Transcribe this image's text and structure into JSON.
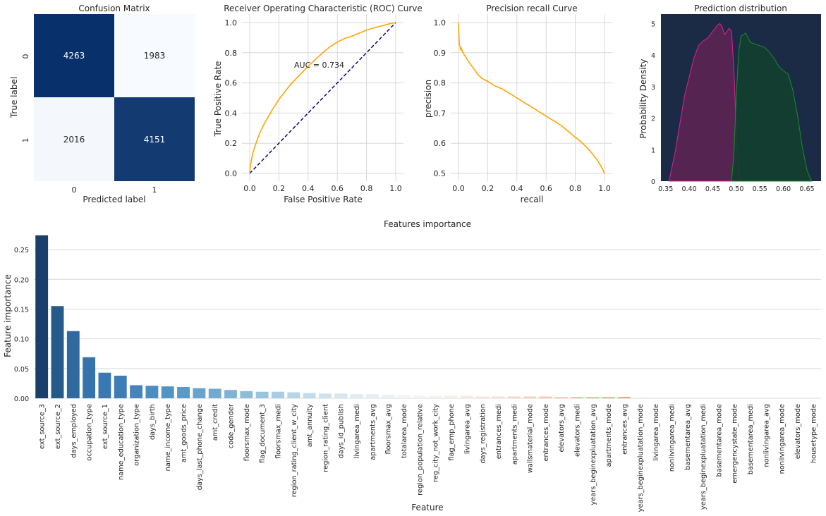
{
  "chart_data": [
    {
      "type": "heatmap",
      "title": "Confusion Matrix",
      "xlabel": "Predicted label",
      "ylabel": "True label",
      "x_categories": [
        "0",
        "1"
      ],
      "y_categories": [
        "0",
        "1"
      ],
      "values": [
        [
          4263,
          1983
        ],
        [
          2016,
          4151
        ]
      ],
      "colormap": "Blues",
      "colors": {
        "high": "#08306b",
        "high2": "#083d7f",
        "low": "#f7fbff"
      }
    },
    {
      "type": "line",
      "title": "Receiver Operating Characteristic (ROC) Curve",
      "xlabel": "False Positive Rate",
      "ylabel": "True Positive Rate",
      "xlim": [
        0,
        1
      ],
      "ylim": [
        0,
        1
      ],
      "xticks": [
        "0.0",
        "0.2",
        "0.4",
        "0.6",
        "0.8",
        "1.0"
      ],
      "yticks": [
        "0.0",
        "0.2",
        "0.4",
        "0.6",
        "0.8",
        "1.0"
      ],
      "annotation": "AUC = 0.734",
      "grid": true,
      "series": [
        {
          "color": "#ffa500",
          "x": [
            0,
            0.005,
            0.01,
            0.02,
            0.03,
            0.05,
            0.07,
            0.1,
            0.13,
            0.16,
            0.2,
            0.24,
            0.28,
            0.32,
            0.36,
            0.4,
            0.45,
            0.5,
            0.55,
            0.6,
            0.65,
            0.7,
            0.75,
            0.8,
            0.85,
            0.9,
            0.95,
            1.0
          ],
          "y": [
            0,
            0.05,
            0.08,
            0.13,
            0.16,
            0.22,
            0.27,
            0.33,
            0.38,
            0.43,
            0.49,
            0.54,
            0.59,
            0.63,
            0.67,
            0.71,
            0.755,
            0.8,
            0.84,
            0.87,
            0.895,
            0.91,
            0.93,
            0.95,
            0.965,
            0.977,
            0.99,
            1.0
          ]
        },
        {
          "color": "#000080",
          "dash": true,
          "x": [
            0,
            1
          ],
          "y": [
            0,
            1
          ]
        }
      ]
    },
    {
      "type": "line",
      "title": "Precision recall Curve",
      "xlabel": "recall",
      "ylabel": "precision",
      "xlim": [
        0,
        1
      ],
      "ylim": [
        0.5,
        1.0
      ],
      "xticks": [
        "0.0",
        "0.2",
        "0.4",
        "0.6",
        "0.8",
        "1.0"
      ],
      "yticks": [
        "0.5",
        "0.6",
        "0.7",
        "0.8",
        "0.9",
        "1.0"
      ],
      "grid": true,
      "series": [
        {
          "color": "#ffa500",
          "x": [
            0,
            0.003,
            0.006,
            0.01,
            0.015,
            0.02,
            0.03,
            0.05,
            0.07,
            0.1,
            0.13,
            0.16,
            0.2,
            0.25,
            0.3,
            0.35,
            0.4,
            0.45,
            0.5,
            0.55,
            0.6,
            0.65,
            0.7,
            0.75,
            0.8,
            0.85,
            0.9,
            0.95,
            0.98,
            1.0
          ],
          "y": [
            1.0,
            0.96,
            0.93,
            0.92,
            0.91,
            0.915,
            0.9,
            0.885,
            0.87,
            0.85,
            0.83,
            0.815,
            0.805,
            0.79,
            0.78,
            0.765,
            0.75,
            0.735,
            0.72,
            0.705,
            0.69,
            0.675,
            0.66,
            0.64,
            0.62,
            0.6,
            0.575,
            0.545,
            0.52,
            0.5
          ]
        }
      ]
    },
    {
      "type": "area",
      "title": "Prediction distribution",
      "ylabel": "Probability Density",
      "xlim": [
        0.34,
        0.68
      ],
      "ylim": [
        0,
        5.3
      ],
      "xticks": [
        "0.35",
        "0.40",
        "0.45",
        "0.50",
        "0.55",
        "0.60",
        "0.65"
      ],
      "yticks": [
        "0",
        "1",
        "2",
        "3",
        "4",
        "5"
      ],
      "background": "#1b2a45",
      "grid": false,
      "series": [
        {
          "color": "#e0209a",
          "fill": "#5a2453",
          "x": [
            0.357,
            0.37,
            0.38,
            0.39,
            0.4,
            0.41,
            0.42,
            0.43,
            0.44,
            0.45,
            0.46,
            0.465,
            0.47,
            0.475,
            0.48,
            0.485,
            0.49,
            0.495,
            0.5,
            0.505,
            0.51
          ],
          "y": [
            0,
            0.9,
            1.8,
            2.7,
            3.3,
            3.9,
            4.3,
            4.45,
            4.55,
            4.75,
            4.95,
            5.0,
            4.9,
            4.65,
            4.75,
            4.85,
            4.75,
            3.5,
            1.6,
            0.4,
            0
          ]
        },
        {
          "color": "#1e8a2a",
          "fill": "#133f30",
          "x": [
            0.49,
            0.495,
            0.5,
            0.505,
            0.51,
            0.52,
            0.53,
            0.54,
            0.55,
            0.56,
            0.57,
            0.58,
            0.59,
            0.6,
            0.61,
            0.62,
            0.63,
            0.64,
            0.65,
            0.66
          ],
          "y": [
            0,
            0.9,
            2.7,
            4.1,
            4.6,
            4.7,
            4.4,
            4.35,
            4.3,
            4.25,
            4.1,
            3.9,
            3.65,
            3.5,
            3.4,
            2.9,
            2.1,
            1.1,
            0.35,
            0
          ]
        }
      ]
    },
    {
      "type": "bar",
      "title": "Features importance",
      "xlabel": "Feature",
      "ylabel": "Feature importance",
      "ylim": [
        0,
        0.275
      ],
      "yticks": [
        "0.00",
        "0.05",
        "0.10",
        "0.15",
        "0.20",
        "0.25"
      ],
      "grid": true,
      "palette": "RdBu_r",
      "categories": [
        "ext_source_3",
        "ext_source_2",
        "days_employed",
        "occupation_type",
        "ext_source_1",
        "name_education_type",
        "organization_type",
        "days_birth",
        "name_income_type",
        "amt_goods_price",
        "days_last_phone_change",
        "amt_credit",
        "code_gender",
        "floorsmax_mode",
        "flag_document_3",
        "floorsmax_medi",
        "region_rating_client_w_city",
        "amt_annuity",
        "region_rating_client",
        "days_id_publish",
        "livingarea_medi",
        "apartments_avg",
        "floorsmax_avg",
        "totalarea_mode",
        "region_population_relative",
        "reg_city_not_work_city",
        "flag_emp_phone",
        "livingarea_avg",
        "days_registration",
        "entrances_medi",
        "apartments_medi",
        "wallsmaterial_mode",
        "entrances_mode",
        "elevators_avg",
        "elevators_medi",
        "years_beginexpluatation_avg",
        "apartments_mode",
        "entrances_avg",
        "years_beginexpluatation_mode",
        "livingarea_mode",
        "nonlivingarea_medi",
        "basementarea_avg",
        "years_beginexpluatation_medi",
        "basementarea_mode",
        "emergencystate_mode",
        "basementarea_medi",
        "nonlivingarea_avg",
        "nonlivingarea_mode",
        "elevators_mode",
        "housetype_mode"
      ],
      "values": [
        0.274,
        0.155,
        0.113,
        0.069,
        0.043,
        0.038,
        0.022,
        0.021,
        0.02,
        0.019,
        0.017,
        0.016,
        0.014,
        0.012,
        0.011,
        0.011,
        0.01,
        0.009,
        0.008,
        0.008,
        0.007,
        0.007,
        0.006,
        0.005,
        0.004,
        0.004,
        0.004,
        0.004,
        0.003,
        0.003,
        0.003,
        0.003,
        0.003,
        0.002,
        0.002,
        0.002,
        0.002,
        0.002,
        0.0,
        0.0,
        0.0,
        0.0,
        0.0,
        0.0,
        0.0,
        0.0,
        0.0,
        0.0,
        0.0,
        0.0
      ],
      "colors": [
        "#1b3f6b",
        "#255a8a",
        "#2e6aa0",
        "#3573ad",
        "#3a78b2",
        "#3e7db5",
        "#4585bb",
        "#4b8dc0",
        "#5193c4",
        "#5a9ac7",
        "#67a3cc",
        "#72aad0",
        "#7fb3d5",
        "#8cbcda",
        "#99c4de",
        "#a7cce3",
        "#b4d4e7",
        "#c1dbeb",
        "#cde2ee",
        "#d7e7f0",
        "#dfebf2",
        "#e5eef3",
        "#ebf0f4",
        "#f0f2f4",
        "#f4f3f3",
        "#f6f1ef",
        "#f7eee9",
        "#f8eae3",
        "#f8e5dc",
        "#f8dfd3",
        "#f7d8c9",
        "#f6d0be",
        "#f5c8b2",
        "#f3bea5",
        "#f1b498",
        "#eea98a",
        "#eb9e7d",
        "#e89270",
        "#e58663",
        "#e07a58",
        "#db6e4e",
        "#d56345",
        "#cf583d",
        "#c84d36",
        "#c14330",
        "#b93a2b",
        "#b13127",
        "#a82923",
        "#9f2120",
        "#961a1d"
      ]
    }
  ]
}
